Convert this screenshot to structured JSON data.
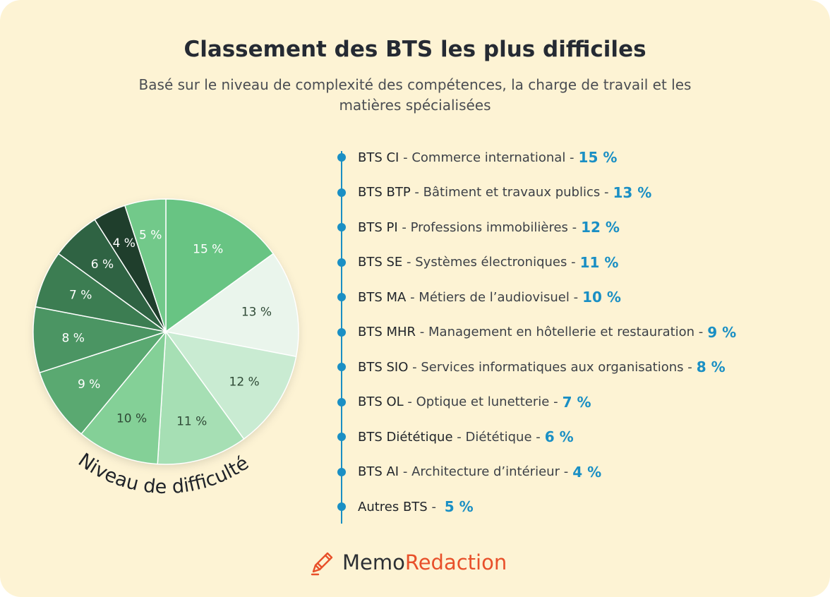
{
  "title": "Classement des BTS les plus difficiles",
  "subtitle": "Basé sur le niveau de complexité des compétences, la charge de travail et les matières spécialisées",
  "chart_data": {
    "type": "pie",
    "label": "Niveau de difficulté",
    "slices": [
      {
        "value": 15,
        "label": "15 %",
        "color": "#68c483",
        "text_color": "#ffffff"
      },
      {
        "value": 13,
        "label": "13 %",
        "color": "#eaf5ec",
        "text_color": "#2f4a36"
      },
      {
        "value": 12,
        "label": "12 %",
        "color": "#c9ebd2",
        "text_color": "#2f4a36"
      },
      {
        "value": 11,
        "label": "11 %",
        "color": "#a6dfb4",
        "text_color": "#2f4a36"
      },
      {
        "value": 10,
        "label": "10 %",
        "color": "#84d097",
        "text_color": "#2f4a36"
      },
      {
        "value": 9,
        "label": "9 %",
        "color": "#5aa971",
        "text_color": "#ffffff"
      },
      {
        "value": 8,
        "label": "8 %",
        "color": "#4b9563",
        "text_color": "#ffffff"
      },
      {
        "value": 7,
        "label": "7 %",
        "color": "#3c7d52",
        "text_color": "#ffffff"
      },
      {
        "value": 6,
        "label": "6 %",
        "color": "#2f6343",
        "text_color": "#ffffff"
      },
      {
        "value": 4,
        "label": "4 %",
        "color": "#1f3e2c",
        "text_color": "#ffffff"
      },
      {
        "value": 5,
        "label": "5 %",
        "color": "#72c98a",
        "text_color": "#ffffff"
      }
    ]
  },
  "legend": [
    {
      "code": "BTS CI",
      "desc": "Commerce international",
      "pct": "15 %"
    },
    {
      "code": "BTS BTP",
      "desc": "Bâtiment et travaux publics",
      "pct": "13 %"
    },
    {
      "code": "BTS PI",
      "desc": "Professions immobilières",
      "pct": "12 %"
    },
    {
      "code": "BTS SE",
      "desc": "Systèmes électroniques",
      "pct": "11 %"
    },
    {
      "code": "BTS MA",
      "desc": "Métiers de l’audiovisuel",
      "pct": "10 %"
    },
    {
      "code": "BTS MHR",
      "desc": "Management en hôtellerie et restauration",
      "pct": "9 %"
    },
    {
      "code": "BTS SIO",
      "desc": "Services informatiques aux organisations",
      "pct": "8 %"
    },
    {
      "code": "BTS OL",
      "desc": "Optique et lunetterie",
      "pct": "7 %"
    },
    {
      "code": "BTS Diététique",
      "desc": "Diététique",
      "pct": "6 %"
    },
    {
      "code": "BTS AI",
      "desc": "Architecture d’intérieur",
      "pct": "4 %"
    },
    {
      "code": "Autres BTS",
      "desc": "",
      "pct": "5 %"
    }
  ],
  "brand": {
    "part1": "Memo",
    "part2": "Redaction",
    "icon": "pencil-icon"
  },
  "colors": {
    "background": "#fdf3d4",
    "accent": "#1a8fc4",
    "brand": "#e8502a"
  }
}
